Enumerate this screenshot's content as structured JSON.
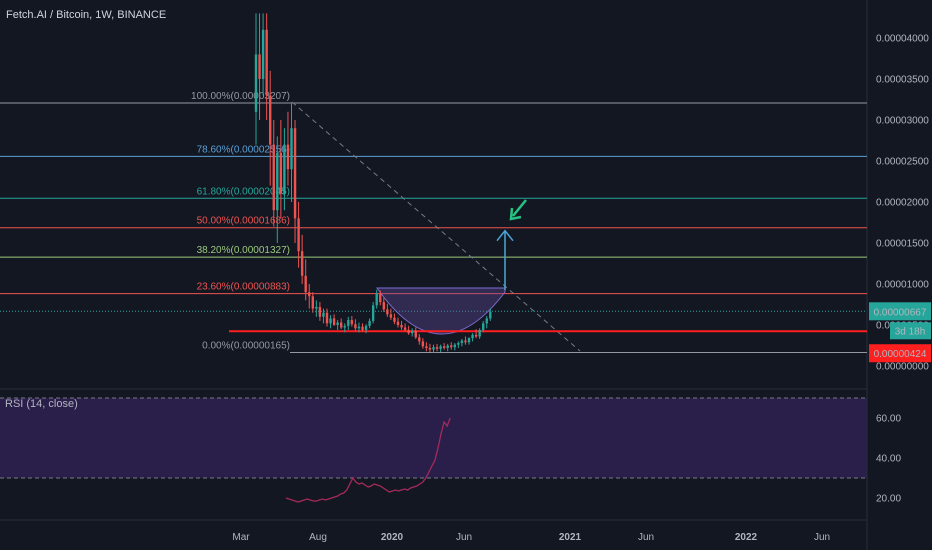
{
  "title": "Fetch.AI / Bitcoin, 1W, BINANCE",
  "rsi_label": "RSI (14, close)",
  "colors": {
    "background": "#131722",
    "candle_up": "#26a69a",
    "candle_down": "#ef5350",
    "rsi_line": "#a52a5a",
    "rsi_band": "#2a1f4a",
    "arrow": "#4aa8d8",
    "green_arrow": "#26c281",
    "support_line": "#ff1f1f"
  },
  "chart_data": [
    {
      "type": "candlestick",
      "ylim": [
        0.0,
        4.3e-05
      ],
      "x_ticks": [
        "Mar",
        "Aug",
        "2020",
        "Jun",
        "2021",
        "Jun",
        "2022",
        "Jun"
      ],
      "y_ticks": [
        "0.00004000",
        "0.00003500",
        "0.00003000",
        "0.00002500",
        "0.00002000",
        "0.00001500",
        "0.00001000",
        "0.00000500",
        "0.00000000"
      ],
      "price_labels": {
        "current": "0.00000667",
        "countdown": "3d 18h",
        "support": "0.00000424"
      },
      "fib_levels": [
        {
          "label": "100.00%(0.00003207)",
          "value": 3.207e-05,
          "color": "#9598a1"
        },
        {
          "label": "78.60%(0.00002556)",
          "value": 2.556e-05,
          "color": "#5aa0d6"
        },
        {
          "label": "61.80%(0.00002045)",
          "value": 2.045e-05,
          "color": "#26a69a"
        },
        {
          "label": "50.00%(0.00001686)",
          "value": 1.686e-05,
          "color": "#ef5350"
        },
        {
          "label": "38.20%(0.00001327)",
          "value": 1.327e-05,
          "color": "#9bc97d"
        },
        {
          "label": "23.60%(0.00000883)",
          "value": 8.83e-06,
          "color": "#ef5350"
        },
        {
          "label": "0.00%(0.00000165)",
          "value": 1.65e-06,
          "color": "#9598a1"
        }
      ],
      "support_level": 4.24e-06,
      "current_price": 6.67e-06,
      "arrow_target": 1.65e-05,
      "candles": [
        {
          "t": 0,
          "o": 3.1e-05,
          "h": 4.3e-05,
          "l": 2.7e-05,
          "c": 3.8e-05
        },
        {
          "t": 1,
          "o": 3.8e-05,
          "h": 4.3e-05,
          "l": 3e-05,
          "c": 3.5e-05
        },
        {
          "t": 2,
          "o": 3.5e-05,
          "h": 4.3e-05,
          "l": 3.3e-05,
          "c": 4.1e-05
        },
        {
          "t": 3,
          "o": 4.1e-05,
          "h": 4.3e-05,
          "l": 3e-05,
          "c": 3.3e-05
        },
        {
          "t": 4,
          "o": 3.3e-05,
          "h": 3.6e-05,
          "l": 2.2e-05,
          "c": 2.7e-05
        },
        {
          "t": 5,
          "o": 2.7e-05,
          "h": 3e-05,
          "l": 1.7e-05,
          "c": 1.9e-05
        },
        {
          "t": 6,
          "o": 1.9e-05,
          "h": 2.8e-05,
          "l": 1.5e-05,
          "c": 2.6e-05
        },
        {
          "t": 7,
          "o": 2.6e-05,
          "h": 3e-05,
          "l": 1.8e-05,
          "c": 2.1e-05
        },
        {
          "t": 8,
          "o": 2.1e-05,
          "h": 2.9e-05,
          "l": 1.9e-05,
          "c": 2.7e-05
        },
        {
          "t": 9,
          "o": 2.7e-05,
          "h": 3.1e-05,
          "l": 2.2e-05,
          "c": 2.4e-05
        },
        {
          "t": 10,
          "o": 2.4e-05,
          "h": 3.2e-05,
          "l": 2e-05,
          "c": 2.9e-05
        },
        {
          "t": 11,
          "o": 2.9e-05,
          "h": 3e-05,
          "l": 1.5e-05,
          "c": 1.8e-05
        },
        {
          "t": 12,
          "o": 1.8e-05,
          "h": 2e-05,
          "l": 1.2e-05,
          "c": 1.4e-05
        },
        {
          "t": 13,
          "o": 1.4e-05,
          "h": 1.6e-05,
          "l": 1e-05,
          "c": 1.1e-05
        },
        {
          "t": 14,
          "o": 1.1e-05,
          "h": 1.3e-05,
          "l": 8e-06,
          "c": 9e-06
        },
        {
          "t": 15,
          "o": 9e-06,
          "h": 1e-05,
          "l": 7e-06,
          "c": 8.5e-06
        },
        {
          "t": 16,
          "o": 8.5e-06,
          "h": 9e-06,
          "l": 6.5e-06,
          "c": 7e-06
        },
        {
          "t": 17,
          "o": 7e-06,
          "h": 8e-06,
          "l": 6e-06,
          "c": 7.2e-06
        },
        {
          "t": 18,
          "o": 7.2e-06,
          "h": 7.8e-06,
          "l": 5.5e-06,
          "c": 6e-06
        },
        {
          "t": 19,
          "o": 6e-06,
          "h": 7e-06,
          "l": 5.2e-06,
          "c": 6.5e-06
        },
        {
          "t": 20,
          "o": 6.5e-06,
          "h": 7e-06,
          "l": 4.8e-06,
          "c": 5.2e-06
        },
        {
          "t": 21,
          "o": 5.2e-06,
          "h": 6.2e-06,
          "l": 4.6e-06,
          "c": 5.8e-06
        },
        {
          "t": 22,
          "o": 5.8e-06,
          "h": 6.3e-06,
          "l": 4.9e-06,
          "c": 5e-06
        },
        {
          "t": 23,
          "o": 5e-06,
          "h": 5.6e-06,
          "l": 4.4e-06,
          "c": 5.3e-06
        },
        {
          "t": 24,
          "o": 5.3e-06,
          "h": 5.8e-06,
          "l": 4.5e-06,
          "c": 4.7e-06
        },
        {
          "t": 25,
          "o": 4.7e-06,
          "h": 5.2e-06,
          "l": 4.1e-06,
          "c": 4.9e-06
        },
        {
          "t": 26,
          "o": 4.9e-06,
          "h": 6e-06,
          "l": 4.4e-06,
          "c": 5.6e-06
        },
        {
          "t": 27,
          "o": 5.6e-06,
          "h": 6.1e-06,
          "l": 4.8e-06,
          "c": 5.1e-06
        },
        {
          "t": 28,
          "o": 5.1e-06,
          "h": 5.7e-06,
          "l": 4.3e-06,
          "c": 4.6e-06
        },
        {
          "t": 29,
          "o": 4.6e-06,
          "h": 5.3e-06,
          "l": 4.1e-06,
          "c": 4.8e-06
        },
        {
          "t": 30,
          "o": 4.8e-06,
          "h": 5.2e-06,
          "l": 4.2e-06,
          "c": 4.4e-06
        },
        {
          "t": 31,
          "o": 4.4e-06,
          "h": 5.1e-06,
          "l": 4e-06,
          "c": 4.9e-06
        },
        {
          "t": 32,
          "o": 4.9e-06,
          "h": 5.8e-06,
          "l": 4.6e-06,
          "c": 5.5e-06
        },
        {
          "t": 33,
          "o": 5.5e-06,
          "h": 7.8e-06,
          "l": 5.2e-06,
          "c": 7.4e-06
        },
        {
          "t": 34,
          "o": 7.4e-06,
          "h": 9.3e-06,
          "l": 7e-06,
          "c": 8.8e-06
        },
        {
          "t": 35,
          "o": 8.8e-06,
          "h": 9.2e-06,
          "l": 7.4e-06,
          "c": 7.8e-06
        },
        {
          "t": 36,
          "o": 7.8e-06,
          "h": 8.3e-06,
          "l": 6.6e-06,
          "c": 6.9e-06
        },
        {
          "t": 37,
          "o": 6.9e-06,
          "h": 7.6e-06,
          "l": 6e-06,
          "c": 6.3e-06
        },
        {
          "t": 38,
          "o": 6.3e-06,
          "h": 7e-06,
          "l": 5.6e-06,
          "c": 5.9e-06
        },
        {
          "t": 39,
          "o": 5.9e-06,
          "h": 6.4e-06,
          "l": 5.1e-06,
          "c": 5.4e-06
        },
        {
          "t": 40,
          "o": 5.4e-06,
          "h": 5.9e-06,
          "l": 4.7e-06,
          "c": 5e-06
        },
        {
          "t": 41,
          "o": 5e-06,
          "h": 5.5e-06,
          "l": 4.4e-06,
          "c": 4.7e-06
        },
        {
          "t": 42,
          "o": 4.7e-06,
          "h": 5.2e-06,
          "l": 4.2e-06,
          "c": 4.4e-06
        },
        {
          "t": 43,
          "o": 4.4e-06,
          "h": 4.9e-06,
          "l": 3.8e-06,
          "c": 4e-06
        },
        {
          "t": 44,
          "o": 4e-06,
          "h": 4.6e-06,
          "l": 3.6e-06,
          "c": 4.3e-06
        },
        {
          "t": 45,
          "o": 4.3e-06,
          "h": 4.7e-06,
          "l": 3.3e-06,
          "c": 3.5e-06
        },
        {
          "t": 46,
          "o": 3.5e-06,
          "h": 3.9e-06,
          "l": 2.6e-06,
          "c": 3e-06
        },
        {
          "t": 47,
          "o": 3e-06,
          "h": 3.4e-06,
          "l": 2.1e-06,
          "c": 2.4e-06
        },
        {
          "t": 48,
          "o": 2.4e-06,
          "h": 2.9e-06,
          "l": 1.8e-06,
          "c": 2.2e-06
        },
        {
          "t": 49,
          "o": 2.2e-06,
          "h": 2.7e-06,
          "l": 1.7e-06,
          "c": 2e-06
        },
        {
          "t": 50,
          "o": 2e-06,
          "h": 2.6e-06,
          "l": 1.6e-06,
          "c": 2.3e-06
        },
        {
          "t": 51,
          "o": 2.3e-06,
          "h": 2.7e-06,
          "l": 1.8e-06,
          "c": 2.1e-06
        },
        {
          "t": 52,
          "o": 2.1e-06,
          "h": 2.6e-06,
          "l": 1.7e-06,
          "c": 2.4e-06
        },
        {
          "t": 53,
          "o": 2.4e-06,
          "h": 2.8e-06,
          "l": 2e-06,
          "c": 2.2e-06
        },
        {
          "t": 54,
          "o": 2.2e-06,
          "h": 2.7e-06,
          "l": 1.8e-06,
          "c": 2.5e-06
        },
        {
          "t": 55,
          "o": 2.5e-06,
          "h": 2.9e-06,
          "l": 2e-06,
          "c": 2.3e-06
        },
        {
          "t": 56,
          "o": 2.3e-06,
          "h": 2.8e-06,
          "l": 1.9e-06,
          "c": 2.6e-06
        },
        {
          "t": 57,
          "o": 2.6e-06,
          "h": 3e-06,
          "l": 2.2e-06,
          "c": 2.8e-06
        },
        {
          "t": 58,
          "o": 2.8e-06,
          "h": 3.3e-06,
          "l": 2.4e-06,
          "c": 3.1e-06
        },
        {
          "t": 59,
          "o": 3.1e-06,
          "h": 3.6e-06,
          "l": 2.6e-06,
          "c": 2.9e-06
        },
        {
          "t": 60,
          "o": 2.9e-06,
          "h": 3.5e-06,
          "l": 2.6e-06,
          "c": 3.4e-06
        },
        {
          "t": 61,
          "o": 3.4e-06,
          "h": 4e-06,
          "l": 3e-06,
          "c": 3.8e-06
        },
        {
          "t": 62,
          "o": 3.8e-06,
          "h": 4.5e-06,
          "l": 3.4e-06,
          "c": 3.6e-06
        },
        {
          "t": 63,
          "o": 3.6e-06,
          "h": 4.6e-06,
          "l": 3.3e-06,
          "c": 4.4e-06
        },
        {
          "t": 64,
          "o": 4.4e-06,
          "h": 5.5e-06,
          "l": 4.1e-06,
          "c": 5.2e-06
        },
        {
          "t": 65,
          "o": 5.2e-06,
          "h": 6.1e-06,
          "l": 4.6e-06,
          "c": 5.8e-06
        },
        {
          "t": 66,
          "o": 5.8e-06,
          "h": 7e-06,
          "l": 5.5e-06,
          "c": 6.6e-06
        }
      ]
    },
    {
      "type": "line",
      "name": "RSI (14, close)",
      "ylim": [
        10,
        75
      ],
      "y_ticks": [
        "60.00",
        "40.00",
        "20.00"
      ],
      "bands": [
        30,
        70
      ],
      "t": [
        26,
        28,
        30,
        32,
        34,
        36,
        38,
        40,
        42,
        44,
        46,
        48,
        50,
        52,
        54,
        56,
        58,
        60,
        62,
        64,
        66,
        68,
        70,
        72,
        74,
        76,
        78,
        80,
        82,
        84,
        86,
        88,
        90,
        92,
        94,
        96,
        98,
        100,
        102,
        104,
        106,
        108,
        110,
        112,
        114,
        116,
        118,
        120,
        122,
        124,
        126,
        128,
        130,
        132,
        134
      ],
      "values": [
        20,
        19.5,
        19,
        18.5,
        18,
        18.5,
        19,
        19.5,
        19,
        18.5,
        18.5,
        19,
        19.5,
        19,
        19.5,
        20,
        20.5,
        21,
        22,
        22.5,
        24,
        27,
        30,
        28,
        27,
        27.5,
        26.5,
        25.5,
        26,
        27,
        26.5,
        26,
        25,
        24,
        23,
        23.5,
        24,
        23.5,
        24,
        24.5,
        24,
        25,
        25.5,
        26,
        27,
        28,
        30,
        33,
        36,
        39,
        45,
        52,
        58,
        56,
        60
      ]
    }
  ]
}
